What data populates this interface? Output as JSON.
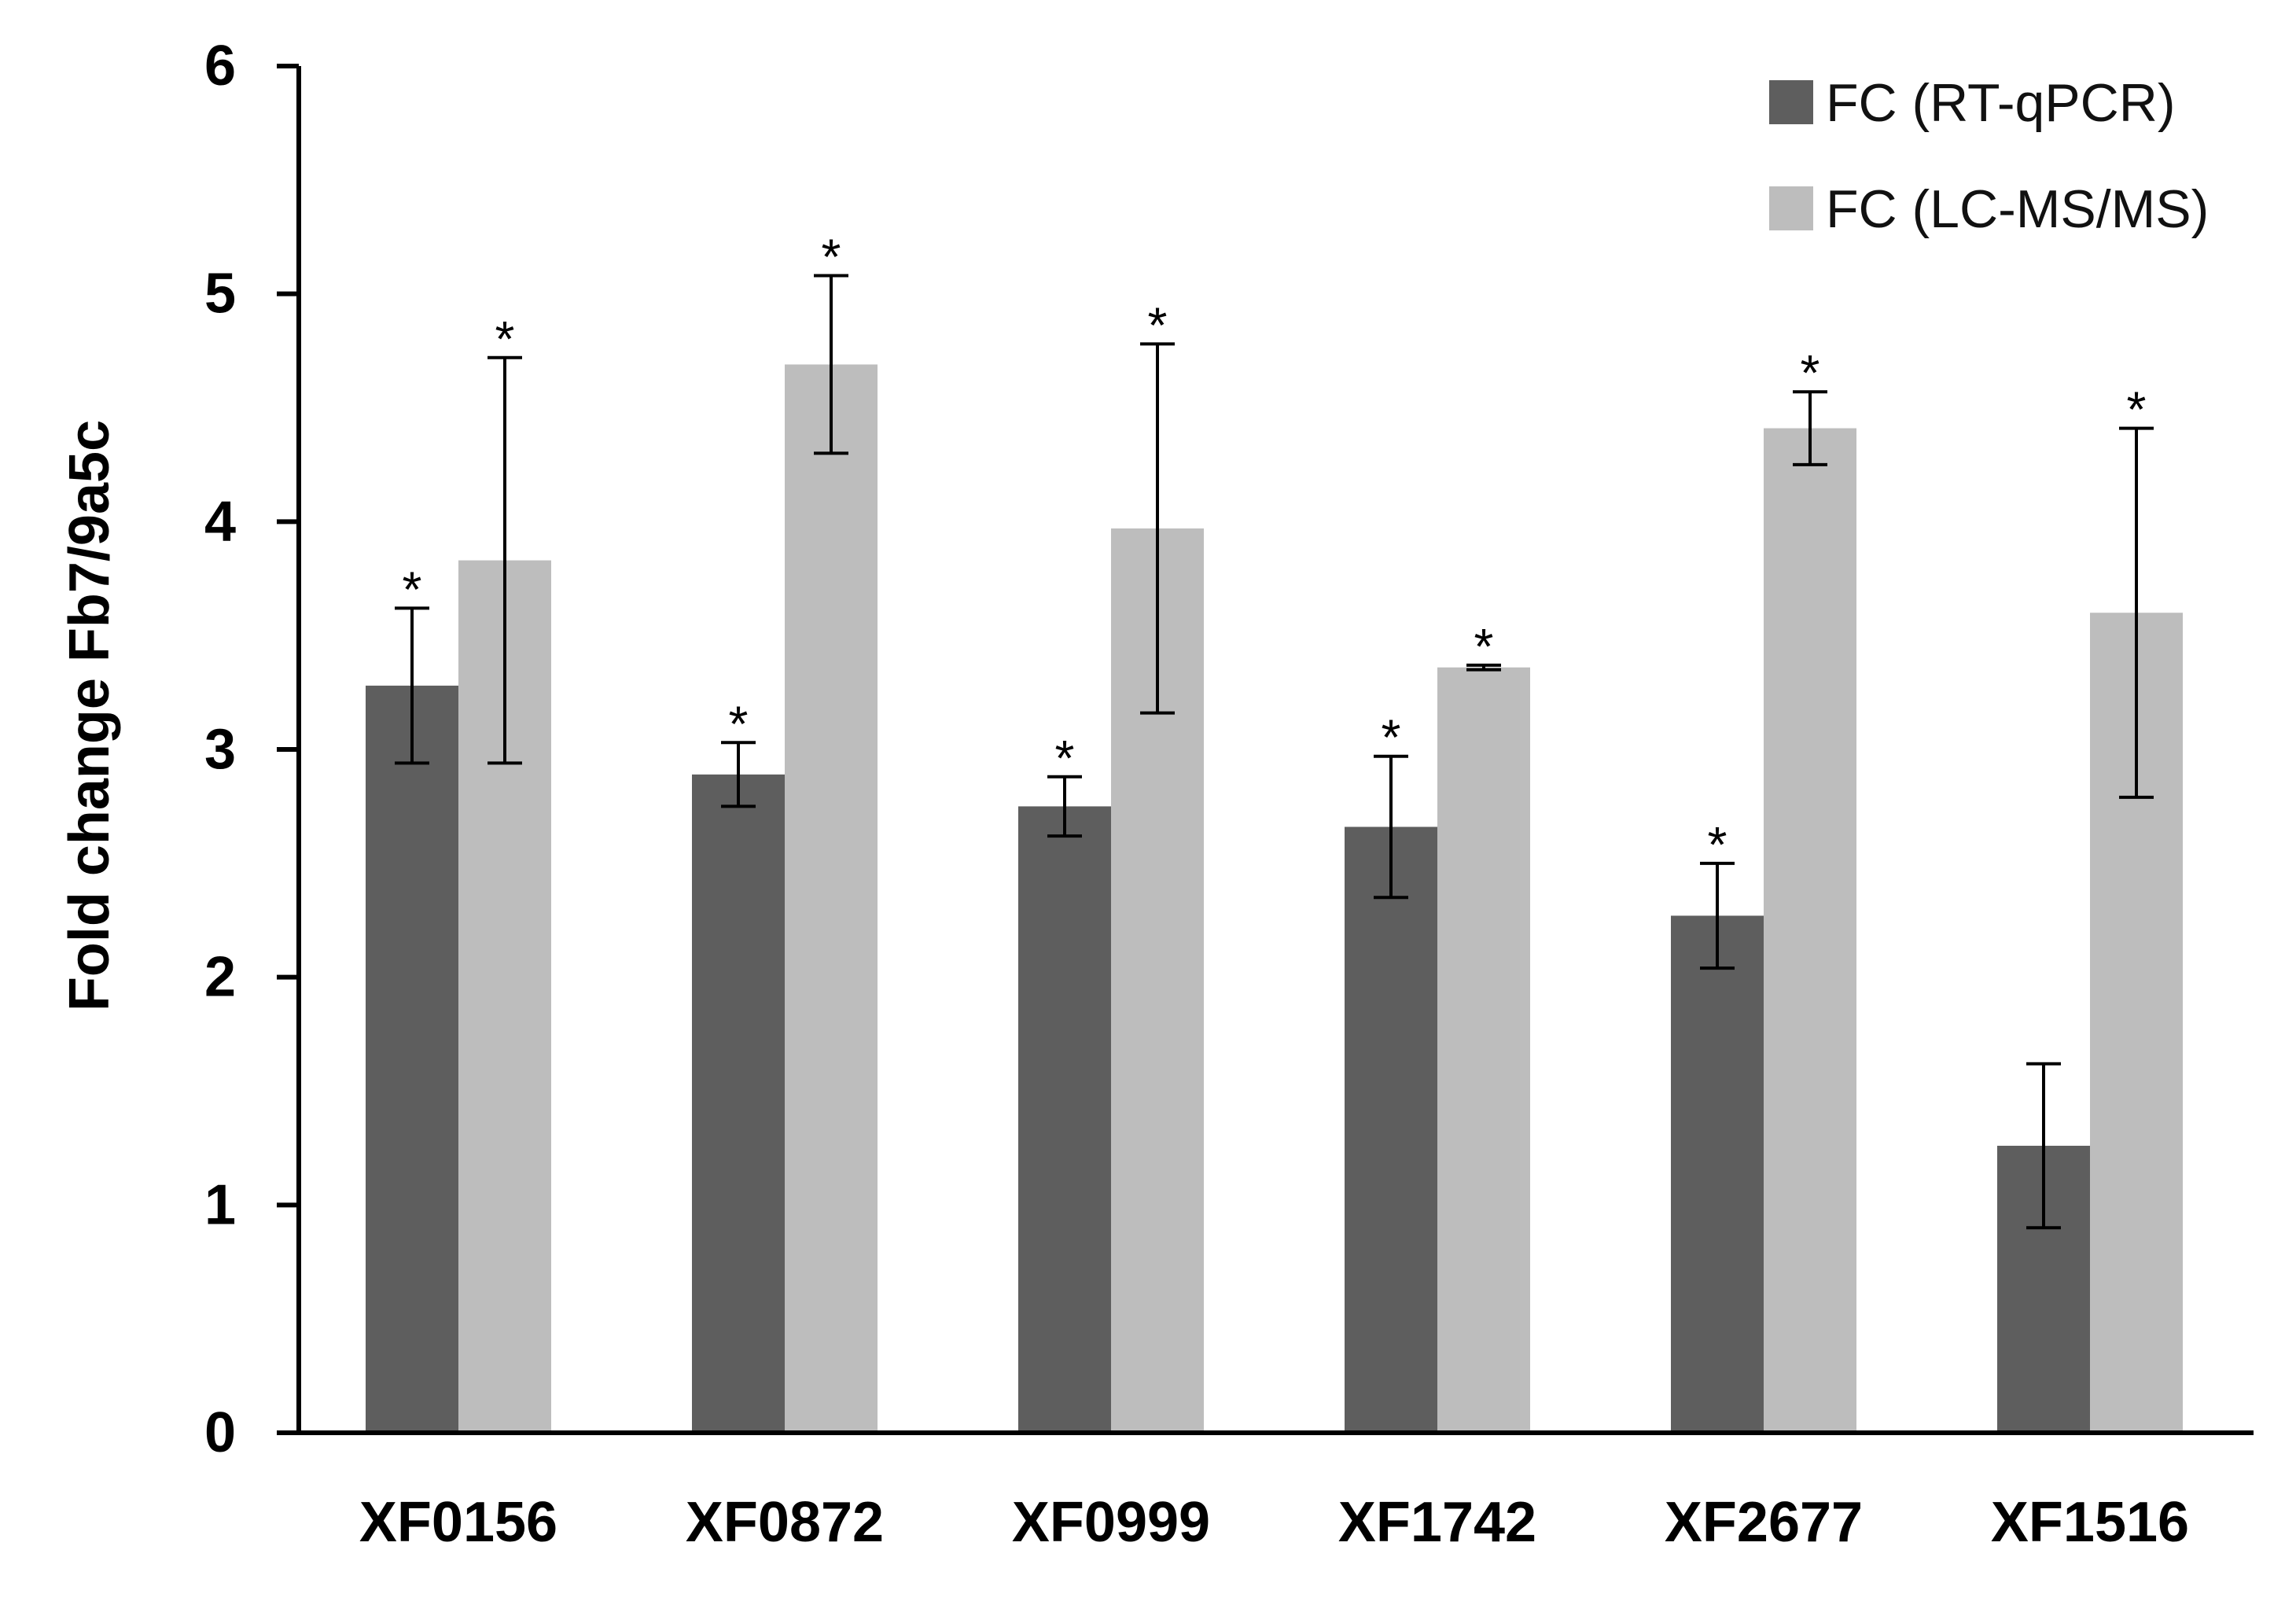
{
  "chart_data": {
    "type": "bar",
    "title": "",
    "xlabel": "",
    "ylabel": "Fold change  Fb7/9a5c",
    "ylim": [
      0,
      6
    ],
    "yticks": [
      "0",
      "1",
      "2",
      "3",
      "4",
      "5",
      "6"
    ],
    "categories": [
      "XF0156",
      "XF0872",
      "XF0999",
      "XF1742",
      "XF2677",
      "XF1516"
    ],
    "series": [
      {
        "name": "FC (RT-qPCR)",
        "color": "#5e5e5e",
        "values": [
          3.28,
          2.89,
          2.75,
          2.66,
          2.27,
          1.26
        ],
        "errors": [
          0.34,
          0.14,
          0.13,
          0.31,
          0.23,
          0.36
        ],
        "significant": [
          true,
          true,
          true,
          true,
          true,
          false
        ]
      },
      {
        "name": "FC (LC-MS/MS)",
        "color": "#bdbdbd",
        "values": [
          3.83,
          4.69,
          3.97,
          3.36,
          4.41,
          3.6
        ],
        "errors": [
          0.89,
          0.39,
          0.81,
          0.01,
          0.16,
          0.81
        ],
        "significant": [
          true,
          true,
          true,
          true,
          true,
          true
        ]
      }
    ],
    "significance_marker": "*",
    "legend_position": "top-right",
    "grid": false
  }
}
